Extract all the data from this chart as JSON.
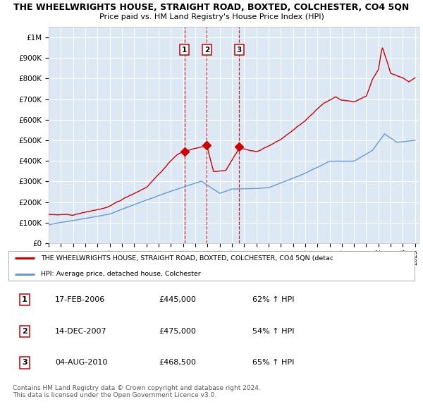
{
  "title": "THE WHEELWRIGHTS HOUSE, STRAIGHT ROAD, BOXTED, COLCHESTER, CO4 5QN",
  "subtitle": "Price paid vs. HM Land Registry's House Price Index (HPI)",
  "background_color": "#dce9f5",
  "plot_bg_color": "#dce9f5",
  "ylim": [
    0,
    1050000
  ],
  "yticks": [
    0,
    100000,
    200000,
    300000,
    400000,
    500000,
    600000,
    700000,
    800000,
    900000,
    1000000
  ],
  "ytick_labels": [
    "£0",
    "£100K",
    "£200K",
    "£300K",
    "£400K",
    "£500K",
    "£600K",
    "£700K",
    "£800K",
    "£900K",
    "£1M"
  ],
  "xstart": 1995,
  "xend": 2025,
  "sale_dates": [
    2006.12,
    2007.95,
    2010.6
  ],
  "sale_prices": [
    445000,
    475000,
    468500
  ],
  "sale_labels": [
    "1",
    "2",
    "3"
  ],
  "legend_entries": [
    "THE WHEELWRIGHTS HOUSE, STRAIGHT ROAD, BOXTED, COLCHESTER, CO4 5QN (detac",
    "HPI: Average price, detached house, Colchester"
  ],
  "legend_colors": [
    "#cc0000",
    "#6699cc"
  ],
  "table_rows": [
    [
      "1",
      "17-FEB-2006",
      "£445,000",
      "62% ↑ HPI"
    ],
    [
      "2",
      "14-DEC-2007",
      "£475,000",
      "54% ↑ HPI"
    ],
    [
      "3",
      "04-AUG-2010",
      "£468,500",
      "65% ↑ HPI"
    ]
  ],
  "footer": "Contains HM Land Registry data © Crown copyright and database right 2024.\nThis data is licensed under the Open Government Licence v3.0.",
  "hpi_line_color": "#6699cc",
  "price_line_color": "#cc0000",
  "vline_color": "#cc0000",
  "marker_color": "#cc0000"
}
